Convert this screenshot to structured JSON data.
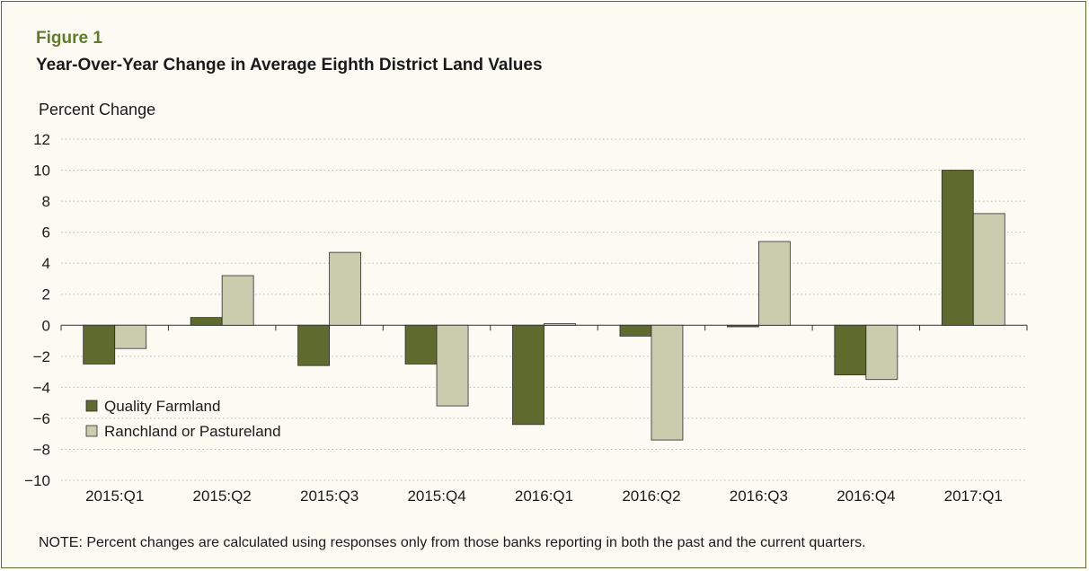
{
  "figure": {
    "label": "Figure 1",
    "title": "Year-Over-Year Change in Average Eighth District Land Values",
    "note": "NOTE: Percent changes are calculated using responses only from those banks reporting in both the past and the current quarters."
  },
  "chart_data": {
    "type": "bar",
    "ylabel": "Percent Change",
    "xlabel": "",
    "ylim": [
      -10,
      12
    ],
    "yticks": [
      12,
      10,
      8,
      6,
      4,
      2,
      0,
      -2,
      -4,
      -6,
      -8,
      -10
    ],
    "ytick_labels": [
      "12",
      "10",
      "8",
      "6",
      "4",
      "2",
      "0",
      "−2",
      "−4",
      "−6",
      "−8",
      "−10"
    ],
    "grid": true,
    "legend_position": "lower-left",
    "categories": [
      "2015:Q1",
      "2015:Q2",
      "2015:Q3",
      "2015:Q4",
      "2016:Q1",
      "2016:Q2",
      "2016:Q3",
      "2016:Q4",
      "2017:Q1"
    ],
    "series": [
      {
        "name": "Quality Farmland",
        "color": "#5f6b2e",
        "values": [
          -2.5,
          0.5,
          -2.6,
          -2.5,
          -6.4,
          -0.7,
          -0.1,
          -3.2,
          10.0
        ]
      },
      {
        "name": "Ranchland or Pastureland",
        "color": "#c9cdae",
        "values": [
          -1.5,
          3.2,
          4.7,
          -5.2,
          0.1,
          -7.4,
          5.4,
          -3.5,
          7.2
        ]
      }
    ]
  }
}
